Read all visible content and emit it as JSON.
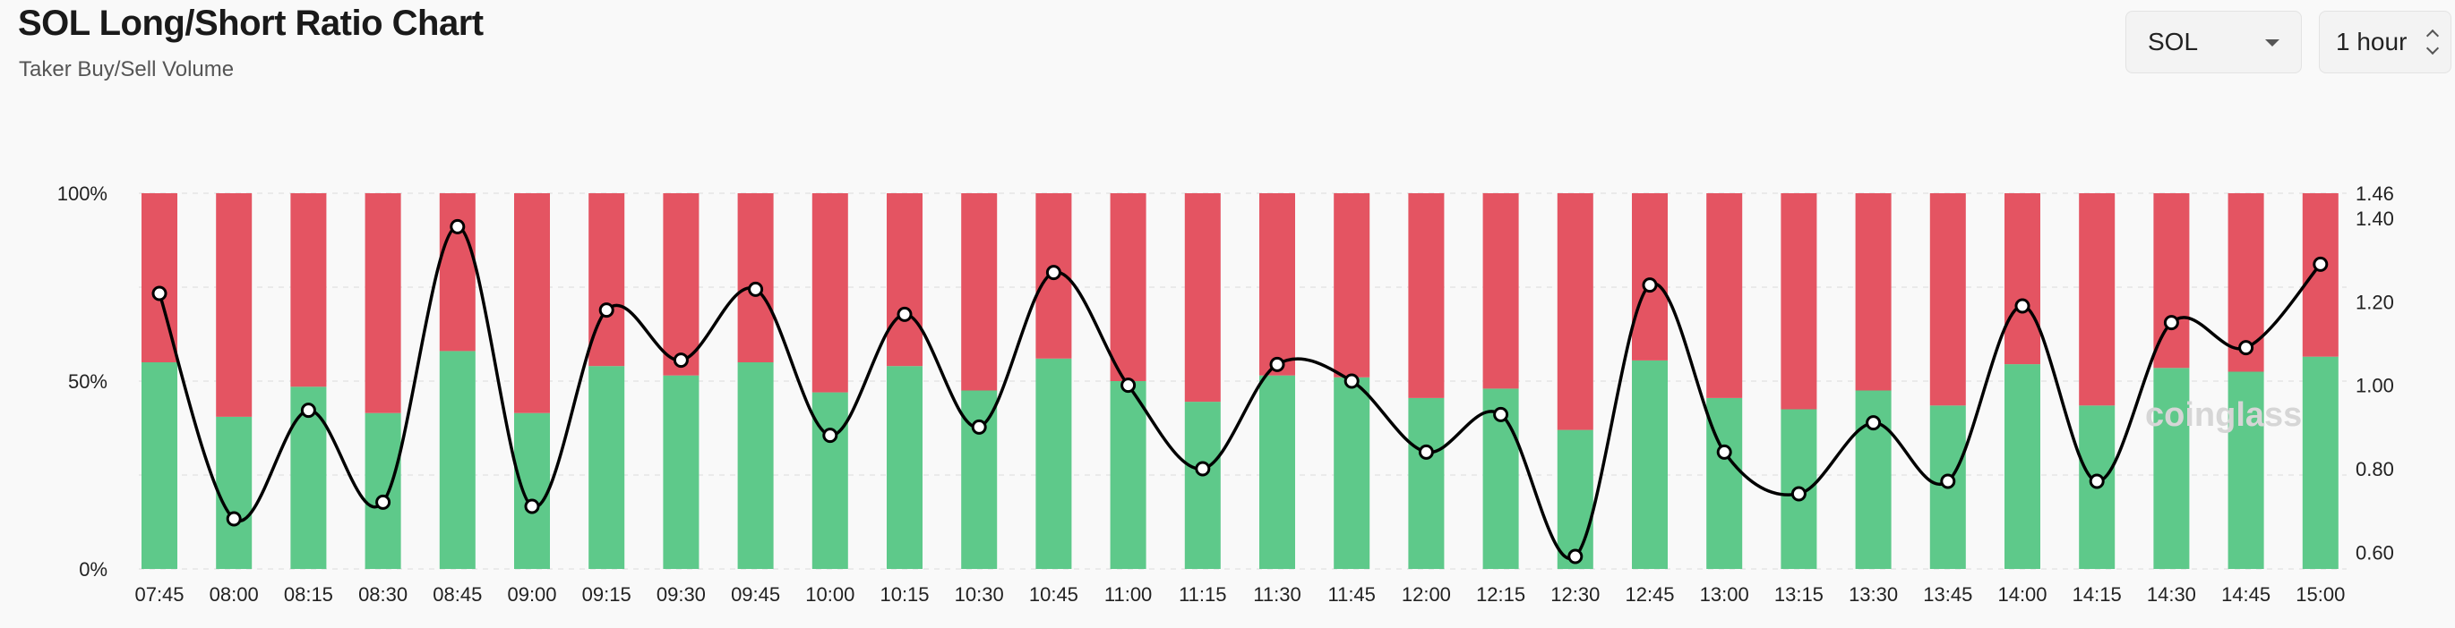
{
  "header": {
    "title": "SOL Long/Short Ratio Chart",
    "subtitle": "Taker Buy/Sell Volume"
  },
  "controls": {
    "coin": "SOL",
    "interval": "1 hour"
  },
  "watermark": "coinglass",
  "chart_data": {
    "type": "bar",
    "stacked": true,
    "categories": [
      "07:45",
      "08:00",
      "08:15",
      "08:30",
      "08:45",
      "09:00",
      "09:15",
      "09:30",
      "09:45",
      "10:00",
      "10:15",
      "10:30",
      "10:45",
      "11:00",
      "11:15",
      "11:30",
      "11:45",
      "12:00",
      "12:15",
      "12:30",
      "12:45",
      "13:00",
      "13:15",
      "13:30",
      "13:45",
      "14:00",
      "14:15",
      "14:30",
      "14:45",
      "15:00"
    ],
    "series": [
      {
        "type": "bar",
        "color": "#5ec98a",
        "values": [
          55,
          40.5,
          48.5,
          41.5,
          58,
          41.5,
          54,
          51.5,
          55,
          47,
          54,
          47.5,
          56,
          50,
          44.5,
          51.5,
          51,
          45.5,
          48,
          37,
          55.5,
          45.5,
          42.5,
          47.5,
          43.5,
          54.5,
          43.5,
          53.5,
          52.5,
          56.5
        ]
      },
      {
        "type": "bar",
        "color": "#e45462",
        "values": [
          45,
          59.5,
          51.5,
          58.5,
          42,
          58.5,
          46,
          48.5,
          45,
          53,
          46,
          52.5,
          44,
          50,
          55.5,
          48.5,
          49,
          54.5,
          52,
          63,
          44.5,
          54.5,
          57.5,
          52.5,
          56.5,
          45.5,
          56.5,
          46.5,
          47.5,
          43.5
        ]
      },
      {
        "type": "line",
        "axis": "right",
        "color": "#000000",
        "values": [
          1.22,
          0.68,
          0.94,
          0.72,
          1.38,
          0.71,
          1.18,
          1.06,
          1.23,
          0.88,
          1.17,
          0.9,
          1.27,
          1.0,
          0.8,
          1.05,
          1.01,
          0.84,
          0.93,
          0.59,
          1.24,
          0.84,
          0.74,
          0.91,
          0.77,
          1.19,
          0.77,
          1.15,
          1.09,
          1.29
        ]
      }
    ],
    "y_left": {
      "ticks": [
        "0%",
        "50%",
        "100%"
      ],
      "ylim": [
        0,
        100
      ]
    },
    "y_right": {
      "ticks": [
        "0.60",
        "0.80",
        "1.00",
        "1.20",
        "1.40",
        "1.46"
      ],
      "ylim": [
        0.56,
        1.46
      ]
    },
    "grid": true,
    "legend": "none"
  }
}
